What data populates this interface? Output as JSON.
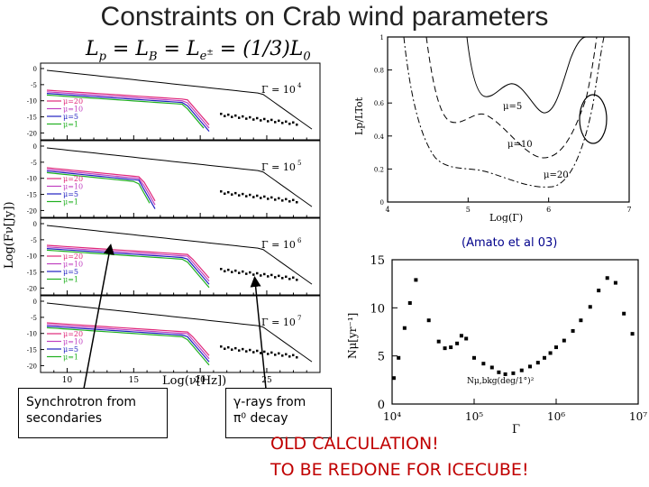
{
  "title": "Constraints on Crab wind parameters",
  "formula": "Lp = LB = Le± = (1/3)L0",
  "left_panel": {
    "ylabel": "Log(Fν[Jy])",
    "xlabel": "Log(ν[Hz])",
    "x_ticks": [
      "10",
      "15",
      "20",
      "25"
    ],
    "y_ticks": [
      "0",
      "-5",
      "-10",
      "-15",
      "-20"
    ],
    "legend": [
      "μ=20",
      "μ=10",
      "μ=5",
      "μ=1"
    ],
    "legend_colors": [
      "#e0287a",
      "#c040c0",
      "#2020c0",
      "#20b020"
    ],
    "panels": [
      {
        "gamma_label": "Γ = 10",
        "gamma_exp": "4"
      },
      {
        "gamma_label": "Γ = 10",
        "gamma_exp": "5"
      },
      {
        "gamma_label": "Γ = 10",
        "gamma_exp": "6"
      },
      {
        "gamma_label": "Γ = 10",
        "gamma_exp": "7"
      }
    ]
  },
  "top_right": {
    "ylabel": "Lp/LTot",
    "xlabel": "Log(Γ)",
    "x_ticks": [
      "4",
      "5",
      "6",
      "7"
    ],
    "y_ticks": [
      "0",
      "0.2",
      "0.4",
      "0.6",
      "0.8",
      "1"
    ],
    "curve_labels": [
      "μ=5",
      "μ=10",
      "μ=20"
    ],
    "citation": "(Amato et al 03)"
  },
  "bottom_right": {
    "ylabel": "Nμ[yr⁻¹]",
    "xlabel": "Γ",
    "x_ticks": [
      "10⁴",
      "10⁵",
      "10⁶",
      "10⁷"
    ],
    "y_ticks": [
      "0",
      "5",
      "10",
      "15"
    ],
    "annotation": "Nμ,bkg(deg/1°)²",
    "chart_data": {
      "type": "scatter",
      "xlabel": "Γ",
      "ylabel": "Nμ[yr⁻¹]",
      "x_scale": "log",
      "xlim": [
        10000,
        10000000
      ],
      "ylim": [
        0,
        15
      ],
      "points": [
        [
          10500,
          2.7
        ],
        [
          12000,
          4.8
        ],
        [
          14200,
          7.9
        ],
        [
          16500,
          10.5
        ],
        [
          19500,
          12.9
        ],
        [
          28000,
          8.7
        ],
        [
          37000,
          6.5
        ],
        [
          44000,
          5.8
        ],
        [
          52000,
          5.9
        ],
        [
          62000,
          6.3
        ],
        [
          70000,
          7.1
        ],
        [
          80000,
          6.8
        ],
        [
          100000,
          4.8
        ],
        [
          130000,
          4.2
        ],
        [
          165000,
          3.8
        ],
        [
          200000,
          3.3
        ],
        [
          240000,
          3.1
        ],
        [
          300000,
          3.2
        ],
        [
          380000,
          3.5
        ],
        [
          480000,
          3.9
        ],
        [
          600000,
          4.3
        ],
        [
          720000,
          4.8
        ],
        [
          850000,
          5.3
        ],
        [
          1000000,
          5.9
        ],
        [
          1250000,
          6.6
        ],
        [
          1600000,
          7.6
        ],
        [
          2000000,
          8.7
        ],
        [
          2600000,
          10.1
        ],
        [
          3300000,
          11.8
        ],
        [
          4200000,
          13.1
        ],
        [
          5300000,
          12.6
        ],
        [
          6700000,
          9.4
        ],
        [
          8500000,
          7.3
        ]
      ]
    }
  },
  "callouts": {
    "synchrotron": [
      "Synchrotron from",
      "secondaries"
    ],
    "gamma": [
      "γ-rays from",
      "π⁰ decay"
    ]
  },
  "notes": [
    "OLD CALCULATION!",
    "TO BE REDONE FOR ICECUBE!"
  ]
}
